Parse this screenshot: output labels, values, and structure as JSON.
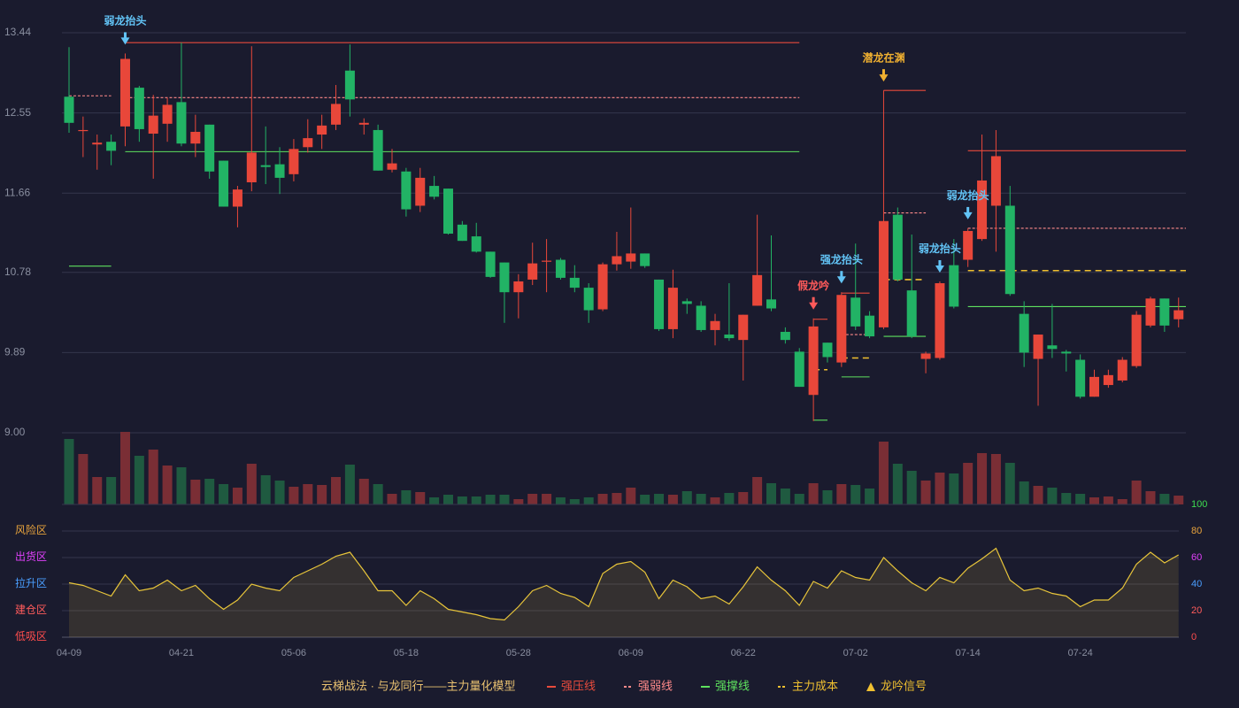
{
  "chart_data": [
    {
      "type": "candlestick",
      "categories": [
        "04-09",
        null,
        null,
        null,
        null,
        null,
        null,
        null,
        "04-21",
        null,
        null,
        null,
        null,
        null,
        null,
        null,
        "05-06",
        null,
        null,
        null,
        null,
        null,
        null,
        null,
        "05-18",
        null,
        null,
        null,
        null,
        null,
        null,
        null,
        "05-28",
        null,
        null,
        null,
        null,
        null,
        null,
        null,
        "06-09",
        null,
        null,
        null,
        null,
        null,
        null,
        null,
        "06-22",
        null,
        null,
        null,
        null,
        null,
        null,
        null,
        "07-02",
        null,
        null,
        null,
        null,
        null,
        null,
        null,
        "07-14",
        null,
        null,
        null,
        null,
        null,
        null,
        null,
        "07-24",
        null,
        null,
        null,
        null,
        null,
        null,
        null
      ],
      "open": [
        12.73,
        12.35,
        12.2,
        12.23,
        12.4,
        12.83,
        12.32,
        12.43,
        12.67,
        12.21,
        12.42,
        12.02,
        11.51,
        11.78,
        11.97,
        11.98,
        11.87,
        12.17,
        12.31,
        12.42,
        13.02,
        12.42,
        12.36,
        11.92,
        11.9,
        11.52,
        11.74,
        11.71,
        11.31,
        11.18,
        11.01,
        10.89,
        10.56,
        10.7,
        10.9,
        10.92,
        10.72,
        10.61,
        10.37,
        10.87,
        10.9,
        10.99,
        10.7,
        10.15,
        10.46,
        10.41,
        10.14,
        10.09,
        10.03,
        10.41,
        10.48,
        10.12,
        9.9,
        9.42,
        10.0,
        9.78,
        10.5,
        10.3,
        10.17,
        11.42,
        10.58,
        9.82,
        9.83,
        10.86,
        10.92,
        11.15,
        11.52,
        11.52,
        10.32,
        9.82,
        9.97,
        9.9,
        9.81,
        9.4,
        9.53,
        9.58,
        9.74,
        10.19,
        10.49,
        10.26
      ],
      "close": [
        12.44,
        12.36,
        12.22,
        12.13,
        13.15,
        12.37,
        12.52,
        12.64,
        12.21,
        12.34,
        11.9,
        11.51,
        11.7,
        12.11,
        11.95,
        11.83,
        12.15,
        12.27,
        12.41,
        12.65,
        12.7,
        12.44,
        11.91,
        11.99,
        11.48,
        11.83,
        11.62,
        11.21,
        11.13,
        11.01,
        10.73,
        10.56,
        10.68,
        10.88,
        10.91,
        10.72,
        10.61,
        10.36,
        10.87,
        10.96,
        10.99,
        10.85,
        10.15,
        10.61,
        10.43,
        10.14,
        10.24,
        10.05,
        10.31,
        10.75,
        10.38,
        10.03,
        9.51,
        10.18,
        9.84,
        10.53,
        10.18,
        10.07,
        11.35,
        10.7,
        10.07,
        9.88,
        10.66,
        10.4,
        11.24,
        11.8,
        12.07,
        10.54,
        9.89,
        10.09,
        9.93,
        9.88,
        9.4,
        9.62,
        9.64,
        9.81,
        10.31,
        10.49,
        10.19,
        10.36
      ],
      "high": [
        13.28,
        12.51,
        12.31,
        12.31,
        13.21,
        12.85,
        12.75,
        12.72,
        13.33,
        12.53,
        12.42,
        12.02,
        11.74,
        13.29,
        12.4,
        12.17,
        12.26,
        12.48,
        12.53,
        12.86,
        13.31,
        12.49,
        12.42,
        12.15,
        11.94,
        11.94,
        11.85,
        11.71,
        11.35,
        11.33,
        11.01,
        10.89,
        10.76,
        11.11,
        11.15,
        10.94,
        10.86,
        10.66,
        10.89,
        11.23,
        11.5,
        10.99,
        10.7,
        10.81,
        10.49,
        10.46,
        10.32,
        10.66,
        10.31,
        11.42,
        11.19,
        10.17,
        9.94,
        10.27,
        10.0,
        10.56,
        11.1,
        10.35,
        12.8,
        11.5,
        11.2,
        9.9,
        10.68,
        11.15,
        11.27,
        12.31,
        12.36,
        11.74,
        10.46,
        10.09,
        10.43,
        9.92,
        9.87,
        9.7,
        9.7,
        9.84,
        10.35,
        10.51,
        10.49,
        10.5
      ],
      "low": [
        12.33,
        12.06,
        11.92,
        11.97,
        12.18,
        12.23,
        11.82,
        12.23,
        12.18,
        12.06,
        11.82,
        11.51,
        11.28,
        11.68,
        11.76,
        11.65,
        11.79,
        12.11,
        12.15,
        12.36,
        12.51,
        12.31,
        11.91,
        11.89,
        11.4,
        11.45,
        11.59,
        11.2,
        11.13,
        11.0,
        10.72,
        10.22,
        10.27,
        10.64,
        10.56,
        10.7,
        10.56,
        10.22,
        10.35,
        10.8,
        10.82,
        10.83,
        10.13,
        10.05,
        10.32,
        10.12,
        9.97,
        10.02,
        9.58,
        10.41,
        10.35,
        9.99,
        9.51,
        9.13,
        9.78,
        9.73,
        10.14,
        10.05,
        10.15,
        10.68,
        10.05,
        9.66,
        9.81,
        10.38,
        10.84,
        11.13,
        11.01,
        10.52,
        9.73,
        9.3,
        9.83,
        9.68,
        9.38,
        9.4,
        9.5,
        9.56,
        9.72,
        10.17,
        10.12,
        10.17
      ],
      "up_color": "#e8473a",
      "down_color": "#22b365",
      "ylim": [
        9,
        13.44
      ],
      "yticks": [
        {
          "value": 9,
          "label": "9.00"
        },
        9.89,
        10.78,
        11.66,
        12.55,
        13.44
      ],
      "grid": true,
      "levels": [
        {
          "name": "强压线",
          "color": "#e84b3c",
          "dashed": false,
          "segments": [
            {
              "from": 4,
              "to": 52,
              "value": 13.33
            },
            {
              "from": 53,
              "to": 54,
              "value": 10.26
            },
            {
              "from": 55,
              "to": 57,
              "value": 10.55
            },
            {
              "from": 58,
              "to": 61,
              "value": 12.8
            },
            {
              "from": 64,
              "to": 79,
              "value": 12.13
            }
          ]
        },
        {
          "name": "强弱线",
          "color": "#ff8a8a",
          "dashed": true,
          "segments": [
            {
              "from": 0,
              "to": 3,
              "value": 12.74
            },
            {
              "from": 4,
              "to": 52,
              "value": 12.72
            },
            {
              "from": 55,
              "to": 57,
              "value": 10.09
            },
            {
              "from": 58,
              "to": 61,
              "value": 11.44
            },
            {
              "from": 62,
              "to": 62,
              "value": 10.16
            },
            {
              "from": 64,
              "to": 79,
              "value": 11.27
            }
          ]
        },
        {
          "name": "强撑线",
          "color": "#5ee05e",
          "dashed": false,
          "segments": [
            {
              "from": 0,
              "to": 3,
              "value": 10.85
            },
            {
              "from": 4,
              "to": 52,
              "value": 12.12
            },
            {
              "from": 53,
              "to": 54,
              "value": 9.14
            },
            {
              "from": 55,
              "to": 57,
              "value": 9.62
            },
            {
              "from": 58,
              "to": 61,
              "value": 10.07
            },
            {
              "from": 62,
              "to": 62,
              "value": 9.65
            },
            {
              "from": 64,
              "to": 79,
              "value": 10.4
            }
          ]
        },
        {
          "name": "主力成本",
          "color": "#f0c030",
          "dashed": true,
          "segments": [
            {
              "from": 53,
              "to": 54,
              "value": 9.7
            },
            {
              "from": 55,
              "to": 57,
              "value": 9.83
            },
            {
              "from": 58,
              "to": 61,
              "value": 10.7
            },
            {
              "from": 64,
              "to": 79,
              "value": 10.8
            }
          ]
        }
      ],
      "signal_name": "龙吟信号",
      "signal_color": "#f0c030",
      "signals": [
        {
          "index": 4,
          "label": "弱龙抬头",
          "color": "#62c3f5"
        },
        {
          "index": 53,
          "label": "假龙吟",
          "color": "#ff5a5a"
        },
        {
          "index": 55,
          "label": "强龙抬头",
          "color": "#62c3f5"
        },
        {
          "index": 58,
          "label": "潜龙在渊",
          "color": "#f0b030"
        },
        {
          "index": 62,
          "label": "弱龙抬头",
          "color": "#62c3f5"
        },
        {
          "index": 64,
          "label": "弱龙抬头",
          "color": "#62c3f5"
        }
      ],
      "legend_title": "云梯战法 · 与龙同行——主力量化模型"
    },
    {
      "type": "bar",
      "values": [
        74,
        57,
        31,
        31,
        82,
        55,
        62,
        44,
        42,
        28,
        29,
        23,
        19,
        46,
        33,
        27,
        20,
        23,
        22,
        31,
        45,
        29,
        23,
        12,
        16,
        14,
        8,
        11,
        9,
        9,
        11,
        11,
        6,
        12,
        12,
        8,
        6,
        8,
        12,
        13,
        19,
        11,
        12,
        11,
        15,
        12,
        8,
        13,
        14,
        31,
        24,
        18,
        12,
        24,
        16,
        23,
        22,
        18,
        71,
        46,
        38,
        27,
        36,
        35,
        47,
        58,
        57,
        47,
        26,
        21,
        19,
        13,
        12,
        8,
        9,
        6,
        27,
        15,
        12,
        10
      ],
      "up_color": "#7a2e35",
      "down_color": "#1f5a40"
    },
    {
      "type": "line",
      "values": [
        41,
        39,
        35,
        31,
        47,
        35,
        37,
        43,
        35,
        39,
        29,
        21,
        28,
        40,
        37,
        35,
        45,
        50,
        55,
        61,
        64,
        50,
        35,
        35,
        24,
        35,
        29,
        21,
        19,
        17,
        14,
        13,
        23,
        35,
        39,
        33,
        30,
        23,
        48,
        55,
        57,
        49,
        29,
        43,
        38,
        29,
        31,
        25,
        38,
        53,
        43,
        35,
        24,
        42,
        37,
        50,
        45,
        43,
        60,
        50,
        41,
        35,
        45,
        41,
        52,
        59,
        67,
        43,
        35,
        37,
        33,
        31,
        23,
        28,
        28,
        37,
        55,
        64,
        56,
        62
      ],
      "color": "#e8c53a",
      "ylim": [
        0,
        100
      ],
      "yticks": [
        0,
        20,
        40,
        60,
        80,
        100
      ],
      "ytick_colors": [
        "#ff4d4d",
        "#ff5b5b",
        "#4a9eff",
        "#e040fb",
        "#e8a33c",
        "#3ddc50"
      ],
      "zones": [
        {
          "label": "风险区",
          "value": 80,
          "color": "#e8a33c"
        },
        {
          "label": "出货区",
          "value": 60,
          "color": "#e040fb"
        },
        {
          "label": "拉升区",
          "value": 40,
          "color": "#4a9eff"
        },
        {
          "label": "建仓区",
          "value": 20,
          "color": "#ff5b5b"
        },
        {
          "label": "低吸区",
          "value": 0,
          "color": "#ff4d4d"
        }
      ]
    }
  ]
}
